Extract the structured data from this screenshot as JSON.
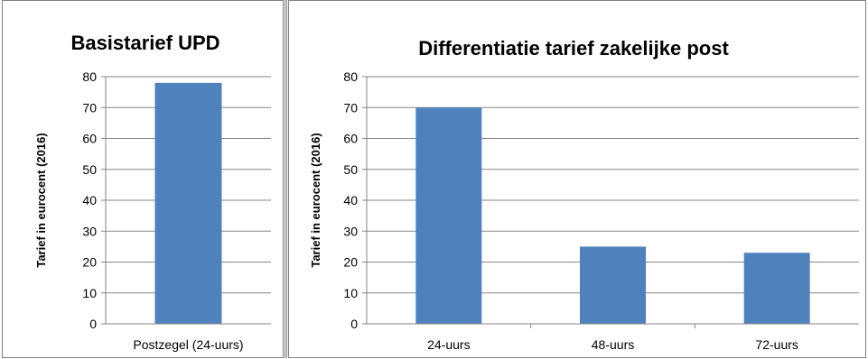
{
  "chart_data": [
    {
      "type": "bar",
      "title": "Basistarief UPD",
      "ylabel": "Tarief in eurocent (2016)",
      "xlabel": "",
      "categories": [
        "Postzegel (24-uurs)"
      ],
      "values": [
        78
      ],
      "ylim": [
        0,
        80
      ],
      "yticks": [
        0,
        10,
        20,
        30,
        40,
        50,
        60,
        70,
        80
      ],
      "grid": true,
      "bar_color": "#4f81bd"
    },
    {
      "type": "bar",
      "title": "Differentiatie tarief zakelijke post",
      "ylabel": "Tarief in eurocent (2016)",
      "xlabel": "",
      "categories": [
        "24-uurs",
        "48-uurs",
        "72-uurs"
      ],
      "values": [
        70,
        25,
        23
      ],
      "ylim": [
        0,
        80
      ],
      "yticks": [
        0,
        10,
        20,
        30,
        40,
        50,
        60,
        70,
        80
      ],
      "grid": true,
      "bar_color": "#4f81bd"
    }
  ]
}
